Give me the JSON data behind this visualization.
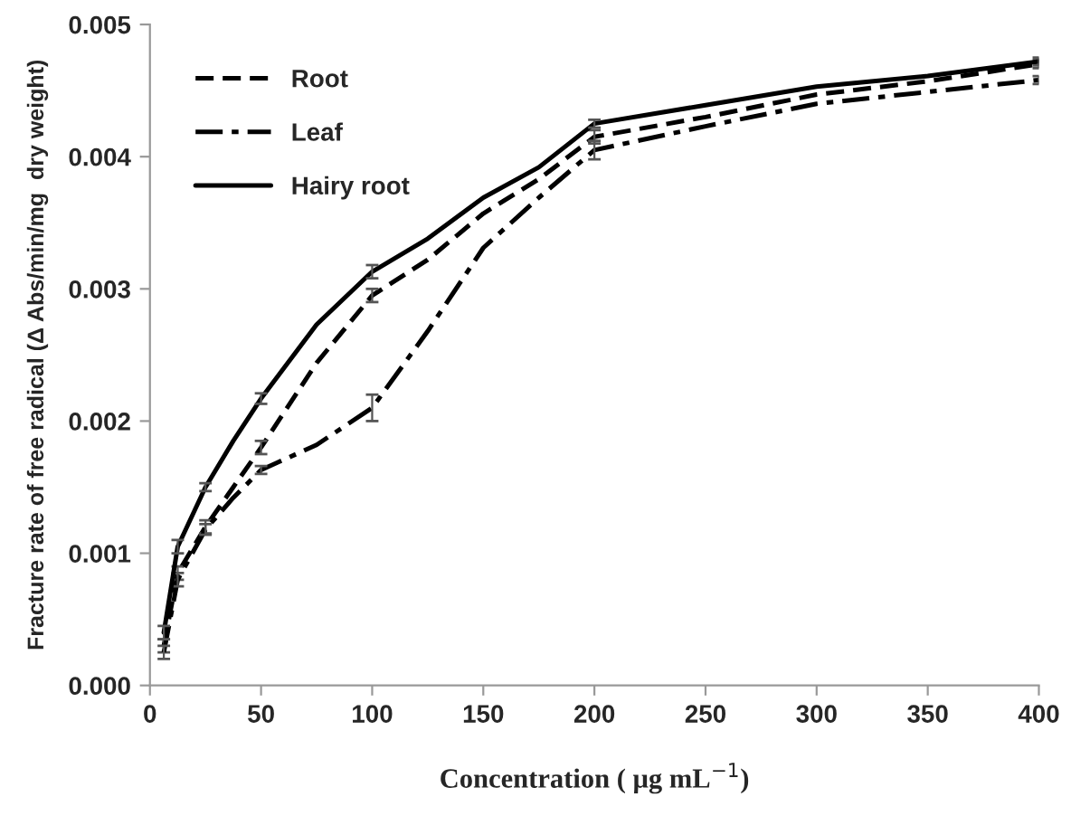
{
  "chart_data": {
    "type": "line",
    "xlabel": "Concentration ( μg mL$^{−1}$)",
    "ylabel": "Fracture rate of free radical (Δ Abs/min/mg  dry weight)",
    "x": [
      6.25,
      12.5,
      25,
      37.5,
      50,
      75,
      100,
      125,
      150,
      175,
      200,
      250,
      300,
      350,
      400
    ],
    "series": [
      {
        "name": "Root",
        "color": "#000000",
        "line_style": "dashed",
        "values": [
          0.0003,
          0.00085,
          0.0012,
          0.0015,
          0.0018,
          0.00244,
          0.00295,
          0.00322,
          0.00357,
          0.00383,
          0.00415,
          0.0043,
          0.00447,
          0.00457,
          0.0047
        ],
        "errors": [
          5e-05,
          5e-05,
          5e-05,
          null,
          5e-05,
          null,
          5e-05,
          null,
          null,
          null,
          5e-05,
          null,
          null,
          null,
          3e-05
        ]
      },
      {
        "name": "Leaf",
        "color": "#000000",
        "line_style": "dashdot",
        "values": [
          0.00025,
          0.0008,
          0.00118,
          0.00142,
          0.00163,
          0.00182,
          0.0021,
          0.00268,
          0.00331,
          0.00369,
          0.00405,
          0.00423,
          0.0044,
          0.00449,
          0.00458
        ],
        "errors": [
          5e-05,
          5e-05,
          4e-05,
          null,
          3e-05,
          null,
          0.0001,
          null,
          null,
          null,
          7e-05,
          null,
          null,
          null,
          3e-05
        ]
      },
      {
        "name": "Hairy root",
        "color": "#000000",
        "line_style": "solid",
        "values": [
          0.0004,
          0.00105,
          0.0015,
          0.00185,
          0.00217,
          0.00273,
          0.00313,
          0.00338,
          0.00369,
          0.00392,
          0.00425,
          0.00439,
          0.00453,
          0.00461,
          0.00472
        ],
        "errors": [
          5e-05,
          5e-05,
          3e-05,
          null,
          4e-05,
          null,
          5e-05,
          null,
          null,
          null,
          3e-05,
          null,
          null,
          null,
          3e-05
        ]
      }
    ],
    "xlim": [
      0,
      400
    ],
    "xticks": [
      0,
      50,
      100,
      150,
      200,
      250,
      300,
      350,
      400
    ],
    "ylim": [
      0,
      0.005
    ],
    "yticks": [
      {
        "value": 0,
        "label": "0.000"
      },
      {
        "value": 0.001,
        "label": "0.001"
      },
      {
        "value": 0.002,
        "label": "0.002"
      },
      {
        "value": 0.003,
        "label": "0.003"
      },
      {
        "value": 0.004,
        "label": "0.004"
      },
      {
        "value": 0.005,
        "label": "0.005"
      }
    ],
    "grid": false,
    "legend": "top left",
    "marker": "none"
  }
}
